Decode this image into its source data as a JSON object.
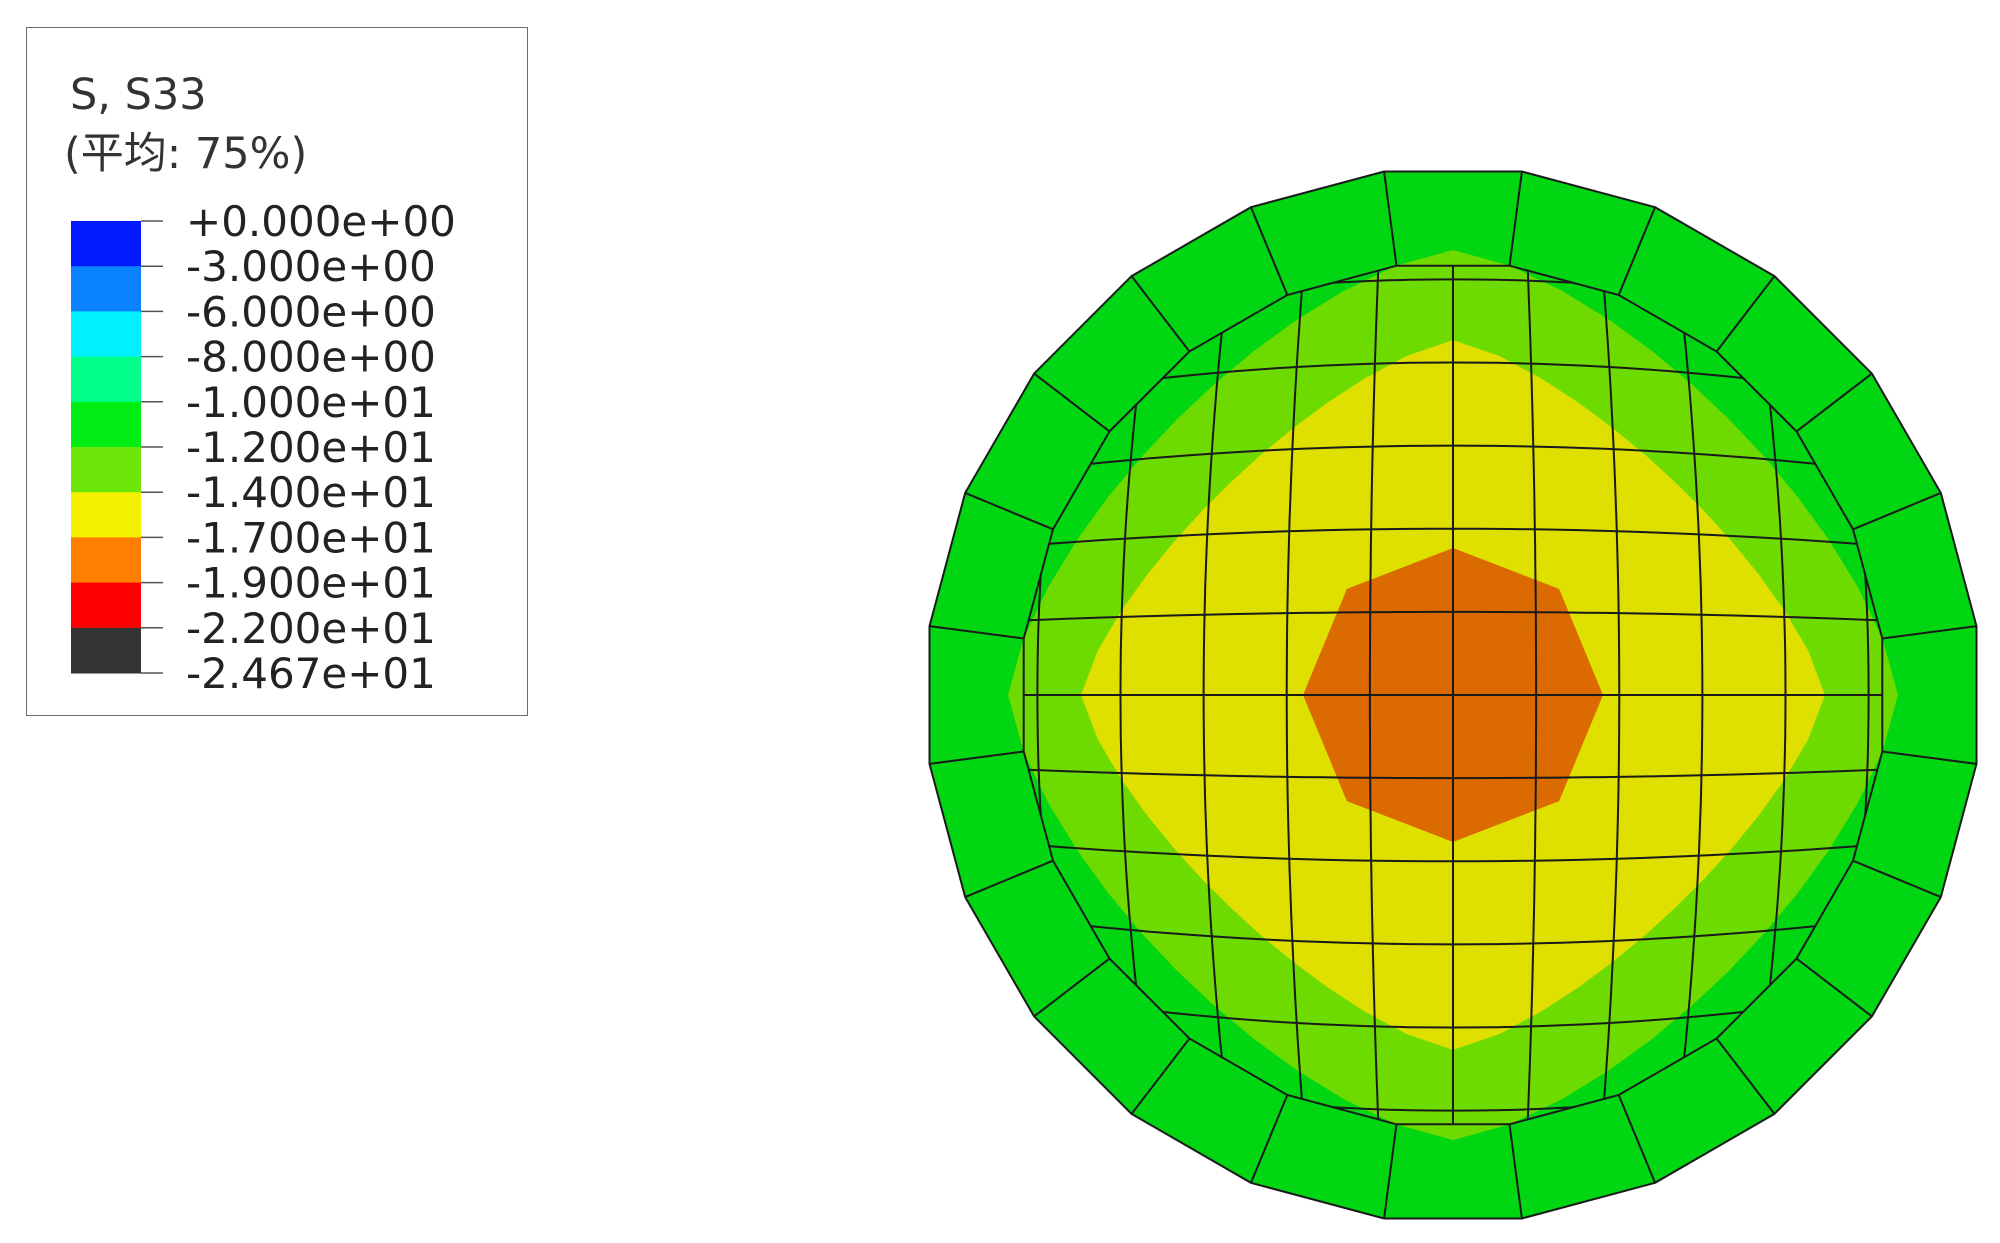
{
  "legend": {
    "title": "S, S33",
    "subtitle": "(平均: 75%)",
    "levels": [
      {
        "label": "+0.000e+00",
        "color": "#0019ff"
      },
      {
        "label": "-3.000e+00",
        "color": "#0a82ff"
      },
      {
        "label": "-6.000e+00",
        "color": "#00f0ff"
      },
      {
        "label": "-8.000e+00",
        "color": "#00ff88"
      },
      {
        "label": "-1.000e+01",
        "color": "#00ee14"
      },
      {
        "label": "-1.200e+01",
        "color": "#6de60a"
      },
      {
        "label": "-1.400e+01",
        "color": "#f4f000"
      },
      {
        "label": "-1.700e+01",
        "color": "#ff7f00"
      },
      {
        "label": "-1.900e+01",
        "color": "#ff0000"
      },
      {
        "label": "-2.200e+01",
        "color": "#333333"
      },
      {
        "label": "-2.467e+01",
        "color": null
      }
    ]
  },
  "contour": {
    "zone_colors": {
      "outer": "#00d611",
      "edge_tint": "#22dd77",
      "middle": "#6dda00",
      "inner": "#dfe000",
      "core": "#db6b00",
      "mesh_line": "#1a1a1a"
    }
  }
}
